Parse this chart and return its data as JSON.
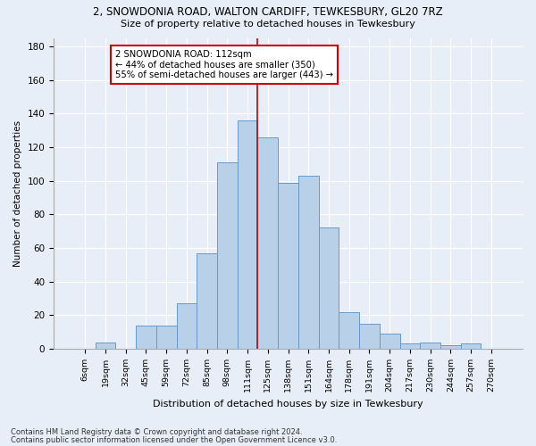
{
  "title": "2, SNOWDONIA ROAD, WALTON CARDIFF, TEWKESBURY, GL20 7RZ",
  "subtitle": "Size of property relative to detached houses in Tewkesbury",
  "xlabel": "Distribution of detached houses by size in Tewkesbury",
  "ylabel": "Number of detached properties",
  "bar_labels": [
    "6sqm",
    "19sqm",
    "32sqm",
    "45sqm",
    "59sqm",
    "72sqm",
    "85sqm",
    "98sqm",
    "111sqm",
    "125sqm",
    "138sqm",
    "151sqm",
    "164sqm",
    "178sqm",
    "191sqm",
    "204sqm",
    "217sqm",
    "230sqm",
    "244sqm",
    "257sqm",
    "270sqm"
  ],
  "bar_values": [
    0,
    4,
    0,
    14,
    14,
    27,
    57,
    111,
    136,
    126,
    99,
    103,
    72,
    22,
    15,
    9,
    3,
    4,
    2,
    3,
    0
  ],
  "bar_color": "#b8d0e8",
  "bar_edge_color": "#6699cc",
  "vline_color": "#cc0000",
  "annotation_title": "2 SNOWDONIA ROAD: 112sqm",
  "annotation_line1": "← 44% of detached houses are smaller (350)",
  "annotation_line2": "55% of semi-detached houses are larger (443) →",
  "annotation_box_color": "#cc0000",
  "ylim": [
    0,
    185
  ],
  "yticks": [
    0,
    20,
    40,
    60,
    80,
    100,
    120,
    140,
    160,
    180
  ],
  "footer1": "Contains HM Land Registry data © Crown copyright and database right 2024.",
  "footer2": "Contains public sector information licensed under the Open Government Licence v3.0.",
  "bg_color": "#e8eef8",
  "grid_color": "#ffffff"
}
